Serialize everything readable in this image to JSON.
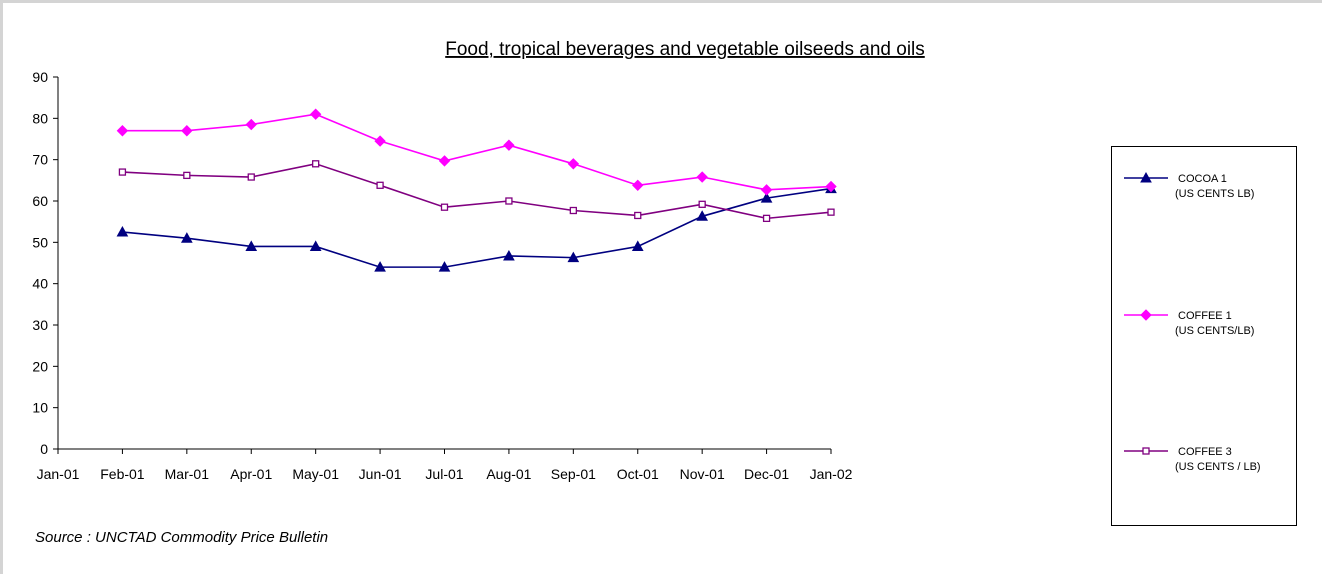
{
  "chart_data": {
    "type": "line",
    "title": "Food, tropical beverages and vegetable oilseeds and oils",
    "xlabel": "",
    "ylabel": "",
    "ylim": [
      0,
      90
    ],
    "yticks": [
      "0",
      "10",
      "20",
      "30",
      "40",
      "50",
      "60",
      "70",
      "80",
      "90"
    ],
    "categories": [
      "Jan-01",
      "Feb-01",
      "Mar-01",
      "Apr-01",
      "May-01",
      "Jun-01",
      "Jul-01",
      "Aug-01",
      "Sep-01",
      "Oct-01",
      "Nov-01",
      "Dec-01",
      "Jan-02"
    ],
    "grid": false,
    "legend_position": "right",
    "series": [
      {
        "name": "COCOA 1",
        "sublabel": "(US CENTS LB)",
        "color": "#000080",
        "marker": "triangle",
        "values": [
          null,
          52.5,
          51,
          49,
          49,
          44,
          44,
          46.7,
          46.3,
          49,
          56.3,
          60.7,
          63
        ]
      },
      {
        "name": "COFFEE 1",
        "sublabel": "(US CENTS/LB)",
        "color": "#ff00ff",
        "marker": "diamond",
        "values": [
          null,
          77,
          77,
          78.5,
          81,
          74.5,
          69.7,
          73.5,
          69,
          63.8,
          65.8,
          62.7,
          63.5
        ]
      },
      {
        "name": "COFFEE 3",
        "sublabel": "(US CENTS / LB)",
        "color": "#800080",
        "marker": "square",
        "values": [
          null,
          67,
          66.2,
          65.8,
          69,
          63.8,
          58.5,
          60,
          57.7,
          56.5,
          59.2,
          55.8,
          57.3
        ]
      }
    ]
  },
  "source": "Source : UNCTAD Commodity Price Bulletin"
}
